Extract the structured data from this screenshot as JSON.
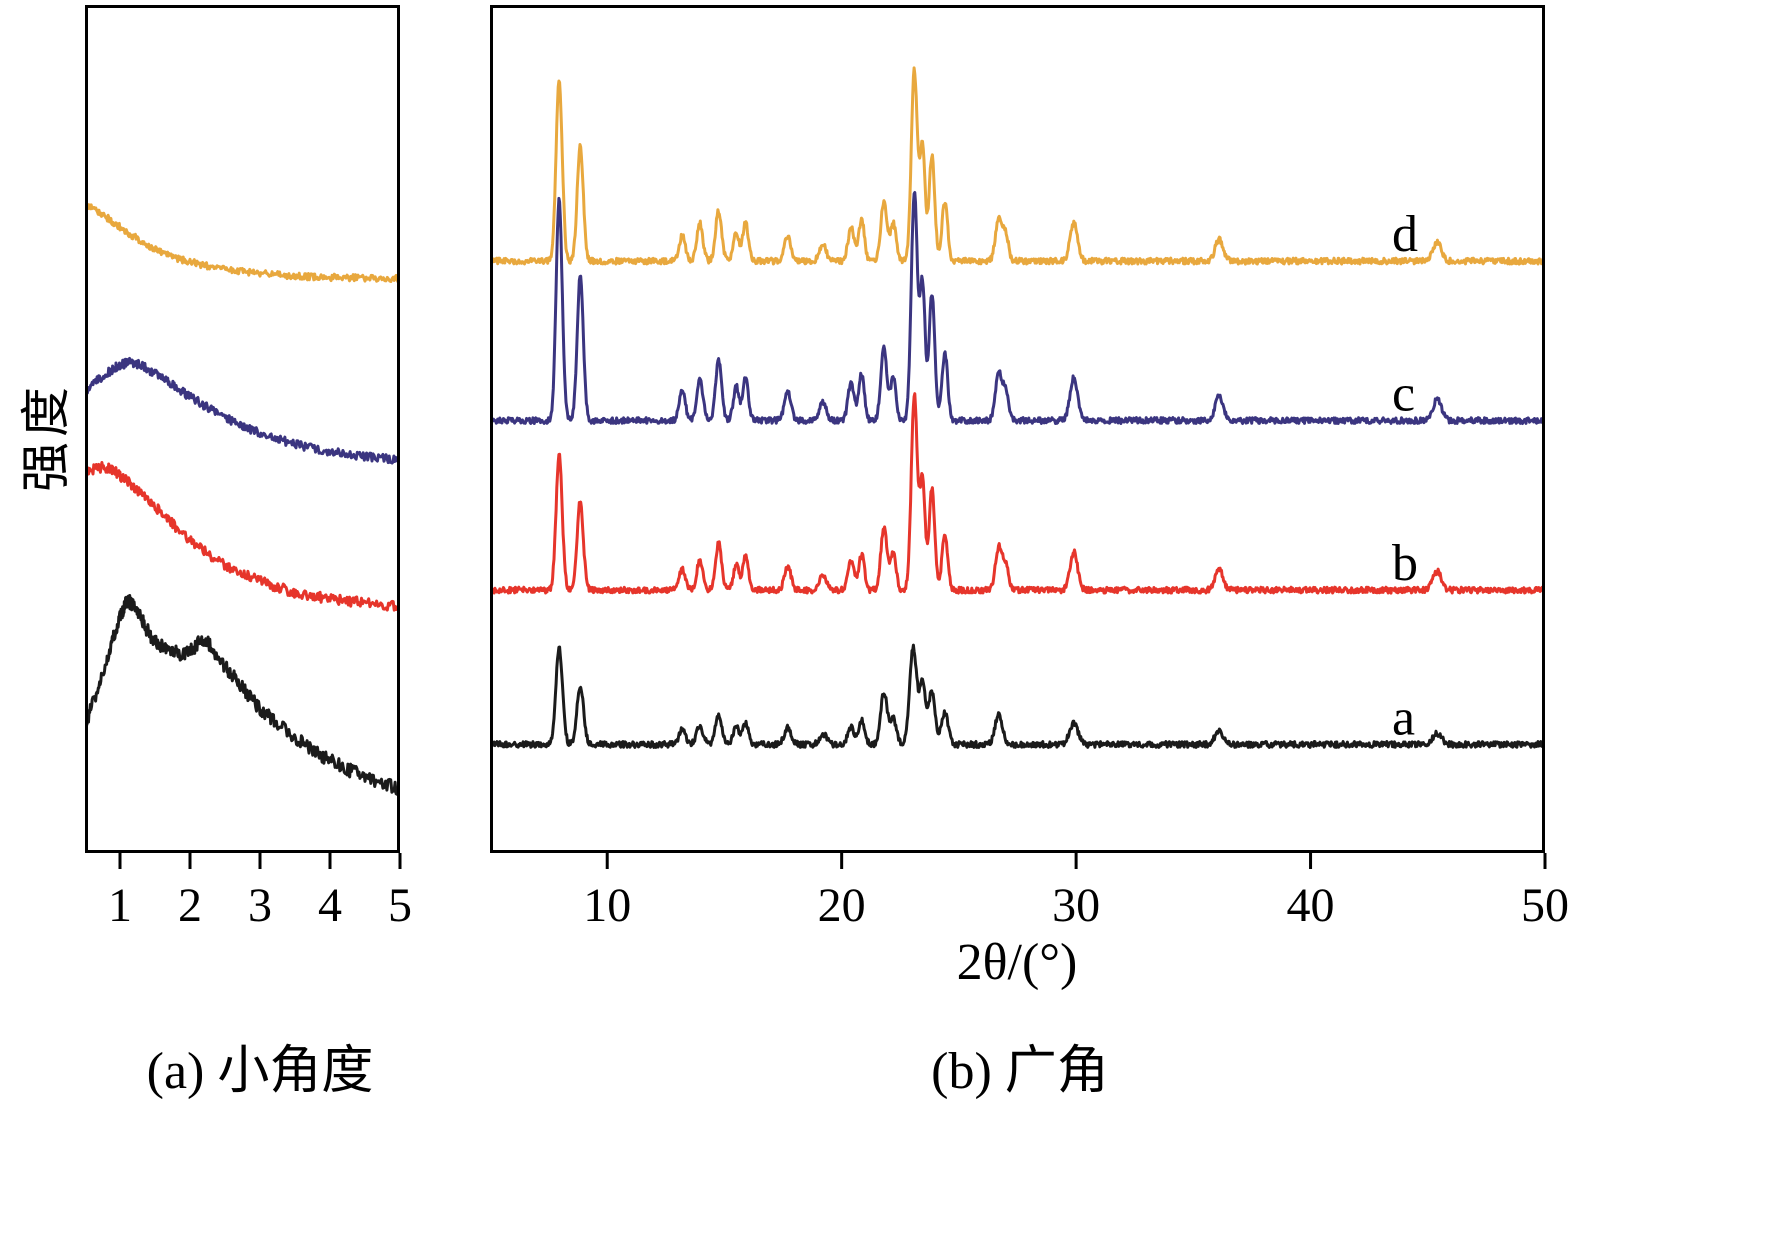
{
  "labels": {
    "ylabel": "强度",
    "xlabel_wide": "2θ/(°)",
    "caption_left": "(a) 小角度",
    "caption_right": "(b) 广角"
  },
  "colors": {
    "series_a": "#1b1b1b",
    "series_b": "#e6352b",
    "series_c": "#3b3580",
    "series_d": "#e8a83e",
    "axis": "#000000",
    "background": "#ffffff"
  },
  "chart_data": [
    {
      "type": "line",
      "panel": "small-angle",
      "title": "(a) 小角度",
      "xlabel": "",
      "ylabel": "强度",
      "xlim": [
        0.5,
        5
      ],
      "x_ticks": [
        "1",
        "2",
        "3",
        "4",
        "5"
      ],
      "grid": false,
      "note": "Small-angle XRD patterns; y given as relative position, 0 = panel top, 1 = panel bottom (intensity in a.u., curves offset)",
      "series": [
        {
          "name": "a",
          "color": "#1b1b1b",
          "noise": 0.008,
          "points": [
            [
              0.5,
              0.85
            ],
            [
              0.75,
              0.79
            ],
            [
              0.95,
              0.735
            ],
            [
              1.1,
              0.705
            ],
            [
              1.25,
              0.715
            ],
            [
              1.45,
              0.745
            ],
            [
              1.7,
              0.76
            ],
            [
              1.95,
              0.765
            ],
            [
              2.2,
              0.75
            ],
            [
              2.45,
              0.775
            ],
            [
              2.7,
              0.8
            ],
            [
              3.0,
              0.83
            ],
            [
              3.3,
              0.85
            ],
            [
              3.7,
              0.875
            ],
            [
              4.1,
              0.895
            ],
            [
              4.5,
              0.91
            ],
            [
              5.0,
              0.925
            ]
          ]
        },
        {
          "name": "b",
          "color": "#e6352b",
          "noise": 0.006,
          "points": [
            [
              0.5,
              0.55
            ],
            [
              0.8,
              0.545
            ],
            [
              1.0,
              0.555
            ],
            [
              1.3,
              0.575
            ],
            [
              1.6,
              0.6
            ],
            [
              2.0,
              0.63
            ],
            [
              2.4,
              0.655
            ],
            [
              2.8,
              0.672
            ],
            [
              3.2,
              0.685
            ],
            [
              3.6,
              0.695
            ],
            [
              4.0,
              0.7
            ],
            [
              4.5,
              0.705
            ],
            [
              5.0,
              0.71
            ]
          ]
        },
        {
          "name": "c",
          "color": "#3b3580",
          "noise": 0.005,
          "points": [
            [
              0.5,
              0.455
            ],
            [
              0.8,
              0.435
            ],
            [
              1.0,
              0.425
            ],
            [
              1.2,
              0.422
            ],
            [
              1.45,
              0.432
            ],
            [
              1.7,
              0.445
            ],
            [
              2.0,
              0.462
            ],
            [
              2.4,
              0.482
            ],
            [
              2.8,
              0.498
            ],
            [
              3.2,
              0.51
            ],
            [
              3.6,
              0.52
            ],
            [
              4.1,
              0.528
            ],
            [
              4.6,
              0.533
            ],
            [
              5.0,
              0.537
            ]
          ]
        },
        {
          "name": "d",
          "color": "#e8a83e",
          "noise": 0.004,
          "points": [
            [
              0.5,
              0.235
            ],
            [
              0.8,
              0.25
            ],
            [
              1.1,
              0.268
            ],
            [
              1.4,
              0.283
            ],
            [
              1.7,
              0.295
            ],
            [
              2.0,
              0.303
            ],
            [
              2.4,
              0.31
            ],
            [
              2.8,
              0.315
            ],
            [
              3.2,
              0.318
            ],
            [
              3.6,
              0.32
            ],
            [
              4.0,
              0.321
            ],
            [
              4.5,
              0.322
            ],
            [
              5.0,
              0.323
            ]
          ]
        }
      ]
    },
    {
      "type": "line",
      "panel": "wide-angle",
      "title": "(b) 广角",
      "xlabel": "2θ/(°)",
      "ylabel": "强度",
      "xlim": [
        5,
        50
      ],
      "x_ticks": [
        "10",
        "20",
        "30",
        "40",
        "50"
      ],
      "grid": false,
      "note": "Wide-angle XRD (MFI-type pattern); peaks = [2theta_deg, height, width], heights relative to panel height, baseline measured from panel top; curves offset",
      "series": [
        {
          "name": "a",
          "color": "#1b1b1b",
          "baseline": 0.872,
          "noise": 0.0035,
          "label_x": 0.855,
          "peaks": [
            [
              7.95,
              0.115,
              0.14
            ],
            [
              8.85,
              0.07,
              0.14
            ],
            [
              13.2,
              0.018,
              0.14
            ],
            [
              13.95,
              0.022,
              0.14
            ],
            [
              14.75,
              0.035,
              0.14
            ],
            [
              15.5,
              0.02,
              0.13
            ],
            [
              15.9,
              0.025,
              0.13
            ],
            [
              17.7,
              0.02,
              0.15
            ],
            [
              19.2,
              0.013,
              0.15
            ],
            [
              20.4,
              0.02,
              0.14
            ],
            [
              20.85,
              0.028,
              0.13
            ],
            [
              21.8,
              0.062,
              0.14
            ],
            [
              22.2,
              0.03,
              0.13
            ],
            [
              23.05,
              0.115,
              0.15
            ],
            [
              23.45,
              0.07,
              0.13
            ],
            [
              23.85,
              0.062,
              0.14
            ],
            [
              24.4,
              0.038,
              0.14
            ],
            [
              26.7,
              0.035,
              0.16
            ],
            [
              29.9,
              0.025,
              0.18
            ],
            [
              36.1,
              0.015,
              0.18
            ],
            [
              45.4,
              0.013,
              0.2
            ]
          ]
        },
        {
          "name": "b",
          "color": "#e6352b",
          "baseline": 0.69,
          "noise": 0.0035,
          "label_x": 0.855,
          "peaks": [
            [
              7.95,
              0.16,
              0.13
            ],
            [
              8.85,
              0.105,
              0.13
            ],
            [
              13.2,
              0.025,
              0.13
            ],
            [
              13.95,
              0.035,
              0.13
            ],
            [
              14.75,
              0.055,
              0.13
            ],
            [
              15.5,
              0.03,
              0.12
            ],
            [
              15.9,
              0.04,
              0.12
            ],
            [
              17.7,
              0.028,
              0.14
            ],
            [
              19.2,
              0.018,
              0.14
            ],
            [
              20.4,
              0.035,
              0.13
            ],
            [
              20.85,
              0.042,
              0.12
            ],
            [
              21.8,
              0.075,
              0.13
            ],
            [
              22.2,
              0.045,
              0.12
            ],
            [
              23.1,
              0.23,
              0.13
            ],
            [
              23.45,
              0.13,
              0.11
            ],
            [
              23.85,
              0.12,
              0.12
            ],
            [
              24.4,
              0.065,
              0.12
            ],
            [
              26.7,
              0.05,
              0.14
            ],
            [
              27.0,
              0.03,
              0.12
            ],
            [
              29.9,
              0.045,
              0.16
            ],
            [
              36.1,
              0.025,
              0.17
            ],
            [
              45.4,
              0.022,
              0.18
            ]
          ]
        },
        {
          "name": "c",
          "color": "#3b3580",
          "baseline": 0.49,
          "noise": 0.0035,
          "label_x": 0.855,
          "peaks": [
            [
              7.95,
              0.26,
              0.13
            ],
            [
              8.85,
              0.17,
              0.13
            ],
            [
              13.2,
              0.035,
              0.13
            ],
            [
              13.95,
              0.05,
              0.13
            ],
            [
              14.75,
              0.07,
              0.13
            ],
            [
              15.5,
              0.04,
              0.12
            ],
            [
              15.9,
              0.05,
              0.12
            ],
            [
              17.7,
              0.035,
              0.14
            ],
            [
              19.2,
              0.022,
              0.14
            ],
            [
              20.4,
              0.045,
              0.13
            ],
            [
              20.85,
              0.055,
              0.12
            ],
            [
              21.8,
              0.085,
              0.13
            ],
            [
              22.2,
              0.05,
              0.12
            ],
            [
              23.1,
              0.27,
              0.13
            ],
            [
              23.45,
              0.16,
              0.11
            ],
            [
              23.85,
              0.15,
              0.12
            ],
            [
              24.4,
              0.08,
              0.12
            ],
            [
              26.7,
              0.055,
              0.14
            ],
            [
              27.0,
              0.035,
              0.12
            ],
            [
              29.9,
              0.05,
              0.16
            ],
            [
              36.1,
              0.028,
              0.17
            ],
            [
              45.4,
              0.025,
              0.18
            ]
          ]
        },
        {
          "name": "d",
          "color": "#e8a83e",
          "baseline": 0.302,
          "noise": 0.0035,
          "label_x": 0.855,
          "peaks": [
            [
              7.95,
              0.215,
              0.13
            ],
            [
              8.85,
              0.135,
              0.13
            ],
            [
              13.2,
              0.03,
              0.13
            ],
            [
              13.95,
              0.045,
              0.13
            ],
            [
              14.75,
              0.06,
              0.13
            ],
            [
              15.5,
              0.035,
              0.12
            ],
            [
              15.9,
              0.045,
              0.12
            ],
            [
              17.7,
              0.03,
              0.14
            ],
            [
              19.2,
              0.02,
              0.14
            ],
            [
              20.4,
              0.04,
              0.13
            ],
            [
              20.85,
              0.05,
              0.12
            ],
            [
              21.8,
              0.07,
              0.13
            ],
            [
              22.2,
              0.045,
              0.12
            ],
            [
              23.1,
              0.225,
              0.13
            ],
            [
              23.45,
              0.135,
              0.11
            ],
            [
              23.85,
              0.125,
              0.12
            ],
            [
              24.4,
              0.07,
              0.12
            ],
            [
              26.7,
              0.05,
              0.14
            ],
            [
              27.0,
              0.03,
              0.12
            ],
            [
              29.9,
              0.045,
              0.16
            ],
            [
              36.1,
              0.025,
              0.17
            ],
            [
              45.4,
              0.022,
              0.18
            ]
          ]
        }
      ]
    }
  ]
}
